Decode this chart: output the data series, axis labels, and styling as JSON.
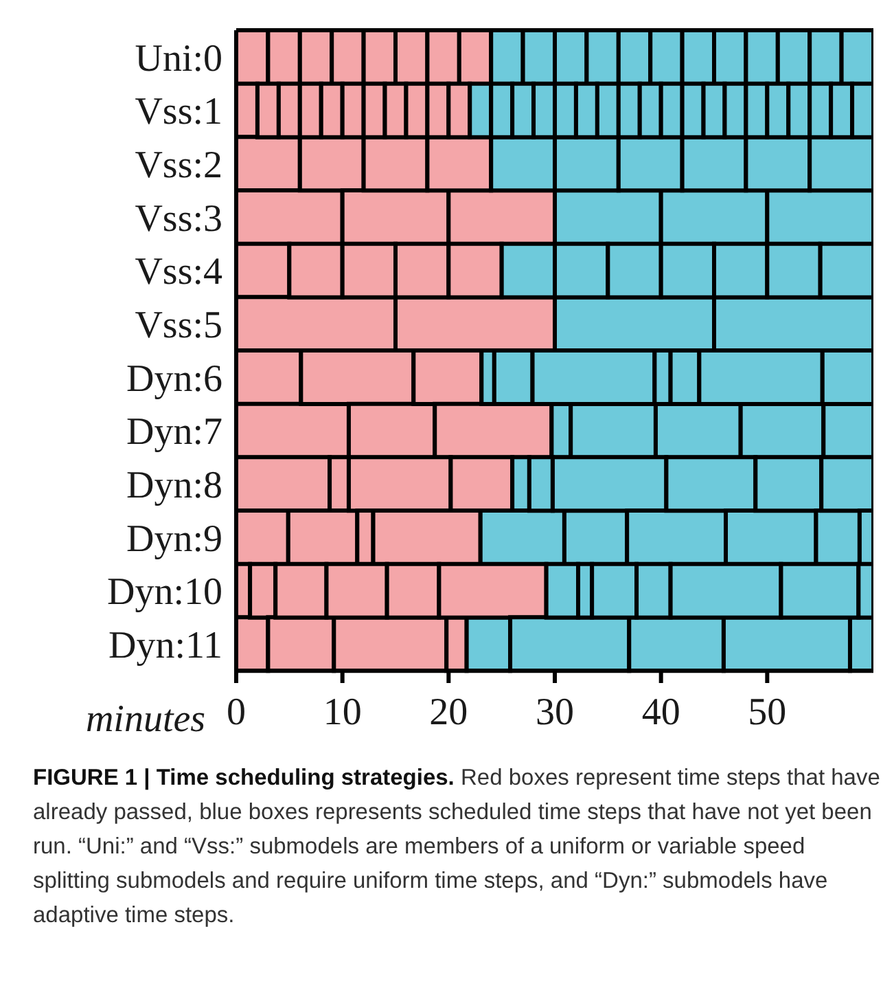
{
  "chart_data": {
    "type": "bar",
    "orientation": "horizontal",
    "stacked": true,
    "categories": [
      "Uni:0",
      "Vss:1",
      "Vss:2",
      "Vss:3",
      "Vss:4",
      "Vss:5",
      "Dyn:6",
      "Dyn:7",
      "Dyn:8",
      "Dyn:9",
      "Dyn:10",
      "Dyn:11"
    ],
    "xlabel": "minutes",
    "xlim": [
      0,
      60
    ],
    "xticks": [
      0,
      10,
      20,
      30,
      40,
      50
    ],
    "series": [
      {
        "values": [
          3,
          2,
          6,
          10,
          5,
          15,
          6.1,
          10.6,
          8.8,
          4.9,
          1.3,
          3.0
        ],
        "colors": [
          "#f4a6a9",
          "#f4a6a9",
          "#f4a6a9",
          "#f4a6a9",
          "#f4a6a9",
          "#f4a6a9",
          "#f4a6a9",
          "#f4a6a9",
          "#f4a6a9",
          "#f4a6a9",
          "#f4a6a9",
          "#f4a6a9"
        ]
      },
      {
        "values": [
          3,
          2,
          6,
          10,
          5,
          15,
          10.6,
          8.1,
          1.8,
          6.5,
          2.4,
          6.2
        ],
        "colors": [
          "#f4a6a9",
          "#f4a6a9",
          "#f4a6a9",
          "#f4a6a9",
          "#f4a6a9",
          "#f4a6a9",
          "#f4a6a9",
          "#f4a6a9",
          "#f4a6a9",
          "#f4a6a9",
          "#f4a6a9",
          "#f4a6a9"
        ]
      },
      {
        "values": [
          3,
          2,
          6,
          10,
          5,
          15,
          6.4,
          11.0,
          9.6,
          1.5,
          4.8,
          10.6
        ],
        "colors": [
          "#f4a6a9",
          "#f4a6a9",
          "#f4a6a9",
          "#f4a6a9",
          "#f4a6a9",
          "#6ecadb",
          "#f4a6a9",
          "#f4a6a9",
          "#f4a6a9",
          "#f4a6a9",
          "#f4a6a9",
          "#f4a6a9"
        ]
      },
      {
        "values": [
          3,
          2,
          6,
          10,
          5,
          15,
          1.2,
          1.8,
          5.8,
          10.1,
          5.7,
          1.9
        ],
        "colors": [
          "#f4a6a9",
          "#f4a6a9",
          "#f4a6a9",
          "#6ecadb",
          "#f4a6a9",
          "#6ecadb",
          "#6ecadb",
          "#6ecadb",
          "#f4a6a9",
          "#f4a6a9",
          "#f4a6a9",
          "#f4a6a9"
        ]
      },
      {
        "values": [
          3,
          2,
          6,
          10,
          5,
          null,
          3.6,
          8.0,
          1.6,
          7.9,
          4.9,
          4.1
        ],
        "colors": [
          "#f4a6a9",
          "#f4a6a9",
          "#6ecadb",
          "#6ecadb",
          "#f4a6a9",
          "#6ecadb",
          "#6ecadb",
          "#6ecadb",
          "#6ecadb",
          "#6ecadb",
          "#f4a6a9",
          "#6ecadb"
        ]
      },
      {
        "values": [
          3,
          2,
          6,
          10,
          5,
          null,
          11.5,
          8.0,
          2.2,
          5.9,
          10.1,
          11.2
        ],
        "colors": [
          "#f4a6a9",
          "#f4a6a9",
          "#6ecadb",
          "#6ecadb",
          "#6ecadb",
          "#6ecadb",
          "#6ecadb",
          "#6ecadb",
          "#6ecadb",
          "#6ecadb",
          "#f4a6a9",
          "#6ecadb"
        ]
      },
      {
        "values": [
          3,
          2,
          6,
          null,
          5,
          null,
          1.5,
          7.8,
          10.7,
          9.3,
          3.0,
          8.9
        ],
        "colors": [
          "#f4a6a9",
          "#f4a6a9",
          "#6ecadb",
          "#6ecadb",
          "#6ecadb",
          "#6ecadb",
          "#6ecadb",
          "#6ecadb",
          "#6ecadb",
          "#6ecadb",
          "#6ecadb",
          "#6ecadb"
        ]
      },
      {
        "values": [
          3,
          2,
          6,
          null,
          5,
          null,
          2.7,
          4.7,
          8.4,
          8.5,
          1.3,
          11.9
        ],
        "colors": [
          "#f4a6a9",
          "#f4a6a9",
          "#6ecadb",
          "#6ecadb",
          "#6ecadb",
          "#6ecadb",
          "#6ecadb",
          "#6ecadb",
          "#6ecadb",
          "#6ecadb",
          "#6ecadb",
          "#6ecadb"
        ]
      },
      {
        "values": [
          3,
          2,
          6,
          null,
          5,
          null,
          11.6,
          null,
          6.2,
          4.1,
          4.2,
          2.2
        ],
        "colors": [
          "#6ecadb",
          "#f4a6a9",
          "#6ecadb",
          "#6ecadb",
          "#6ecadb",
          "#6ecadb",
          "#6ecadb",
          "#6ecadb",
          "#6ecadb",
          "#6ecadb",
          "#6ecadb",
          "#6ecadb"
        ]
      },
      {
        "values": [
          3,
          2,
          6,
          null,
          5,
          null,
          4.8,
          null,
          4.9,
          1.3,
          3.2,
          null
        ],
        "colors": [
          "#6ecadb",
          "#f4a6a9",
          "#6ecadb",
          "#6ecadb",
          "#6ecadb",
          "#6ecadb",
          "#6ecadb",
          "#6ecadb",
          "#6ecadb",
          "#6ecadb",
          "#6ecadb",
          "#6ecadb"
        ]
      },
      {
        "values": [
          3,
          2,
          null,
          null,
          5,
          null,
          null,
          null,
          null,
          null,
          10.4,
          null
        ],
        "colors": [
          "#6ecadb",
          "#f4a6a9",
          "#6ecadb",
          "#6ecadb",
          "#6ecadb",
          "#6ecadb",
          "#6ecadb",
          "#6ecadb",
          "#6ecadb",
          "#6ecadb",
          "#6ecadb",
          "#6ecadb"
        ]
      },
      {
        "values": [
          3,
          2,
          null,
          null,
          5,
          null,
          null,
          null,
          null,
          null,
          7.3,
          null
        ],
        "color": "#6ecadb"
      },
      {
        "values": [
          3,
          2,
          null,
          null,
          null,
          null,
          null,
          null,
          null,
          null,
          1.4,
          null
        ],
        "color": "#6ecadb"
      },
      {
        "values": [
          3,
          2,
          null,
          null,
          null,
          null,
          null,
          null,
          null,
          null,
          null,
          null
        ],
        "color": "#6ecadb"
      },
      {
        "values": [
          3,
          2,
          null,
          null,
          null,
          null,
          null,
          null,
          null,
          null,
          null,
          null
        ],
        "color": "#6ecadb"
      },
      {
        "values": [
          3,
          2,
          null,
          null,
          null,
          null,
          null,
          null,
          null,
          null,
          null,
          null
        ],
        "color": "#6ecadb"
      },
      {
        "values": [
          3,
          2,
          null,
          null,
          null,
          null,
          null,
          null,
          null,
          null,
          null,
          null
        ],
        "color": "#6ecadb"
      },
      {
        "values": [
          3,
          2,
          null,
          null,
          null,
          null,
          null,
          null,
          null,
          null,
          null,
          null
        ],
        "color": "#6ecadb"
      },
      {
        "values": [
          3,
          2,
          null,
          null,
          null,
          null,
          null,
          null,
          null,
          null,
          null,
          null
        ],
        "color": "#6ecadb"
      },
      {
        "values": [
          3,
          2,
          null,
          null,
          null,
          null,
          null,
          null,
          null,
          null,
          null,
          null
        ],
        "color": "#6ecadb"
      },
      {
        "values": [
          null,
          2,
          null,
          null,
          null,
          null,
          null,
          null,
          null,
          null,
          null,
          null
        ],
        "color": "#6ecadb"
      },
      {
        "values": [
          null,
          2,
          null,
          null,
          null,
          null,
          null,
          null,
          null,
          null,
          null,
          null
        ],
        "color": "#6ecadb"
      },
      {
        "values": [
          null,
          2,
          null,
          null,
          null,
          null,
          null,
          null,
          null,
          null,
          null,
          null
        ],
        "color": "#6ecadb"
      },
      {
        "values": [
          null,
          2,
          null,
          null,
          null,
          null,
          null,
          null,
          null,
          null,
          null,
          null
        ],
        "color": "#6ecadb"
      },
      {
        "values": [
          null,
          2,
          null,
          null,
          null,
          null,
          null,
          null,
          null,
          null,
          null,
          null
        ],
        "color": "#6ecadb"
      },
      {
        "values": [
          null,
          2,
          null,
          null,
          null,
          null,
          null,
          null,
          null,
          null,
          null,
          null
        ],
        "color": "#6ecadb"
      },
      {
        "values": [
          null,
          2,
          null,
          null,
          null,
          null,
          null,
          null,
          null,
          null,
          null,
          null
        ],
        "color": "#6ecadb"
      },
      {
        "values": [
          null,
          2,
          null,
          null,
          null,
          null,
          null,
          null,
          null,
          null,
          null,
          null
        ],
        "color": "#6ecadb"
      },
      {
        "values": [
          null,
          2,
          null,
          null,
          null,
          null,
          null,
          null,
          null,
          null,
          null,
          null
        ],
        "color": "#6ecadb"
      },
      {
        "values": [
          null,
          2,
          null,
          null,
          null,
          null,
          null,
          null,
          null,
          null,
          null,
          null
        ],
        "color": "#6ecadb"
      }
    ],
    "annotations": [
      "FIGURE 1 | Time scheduling strategies.",
      "Red boxes represent time steps that have already passed, blue boxes represents scheduled time steps that have not yet been run. “Uni:” and “Vss:” submodels are members of a uniform or variable speed splitting submodels and require uniform time steps, and “Dyn:” submodels have adaptive time steps."
    ]
  }
}
